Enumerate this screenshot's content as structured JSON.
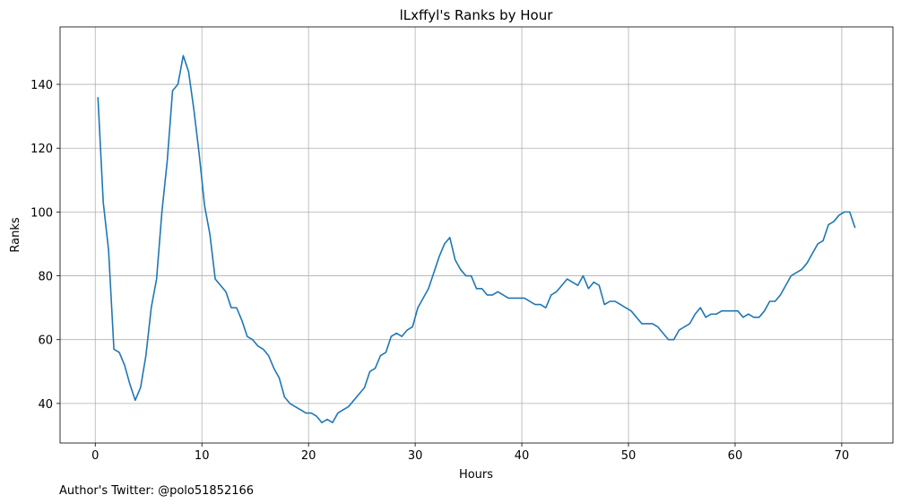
{
  "chart_data": {
    "type": "line",
    "title": "lLxffyl's Ranks by Hour",
    "xlabel": "Hours",
    "ylabel": "Ranks",
    "footnote": "Author's Twitter: @polo51852166",
    "x": [
      0.25,
      0.75,
      1.25,
      1.75,
      2.25,
      2.75,
      3.25,
      3.75,
      4.25,
      4.75,
      5.25,
      5.75,
      6.25,
      6.75,
      7.25,
      7.75,
      8.25,
      8.75,
      9.25,
      9.75,
      10.25,
      10.75,
      11.25,
      11.75,
      12.25,
      12.75,
      13.25,
      13.75,
      14.25,
      14.75,
      15.25,
      15.75,
      16.25,
      16.75,
      17.25,
      17.75,
      18.25,
      18.75,
      19.25,
      19.75,
      20.25,
      20.75,
      21.25,
      21.75,
      22.25,
      22.75,
      23.25,
      23.75,
      24.25,
      24.75,
      25.25,
      25.75,
      26.25,
      26.75,
      27.25,
      27.75,
      28.25,
      28.75,
      29.25,
      29.75,
      30.25,
      30.75,
      31.25,
      31.75,
      32.25,
      32.75,
      33.25,
      33.75,
      34.25,
      34.75,
      35.25,
      35.75,
      36.25,
      36.75,
      37.25,
      37.75,
      38.25,
      38.75,
      39.25,
      39.75,
      40.25,
      40.75,
      41.25,
      41.75,
      42.25,
      42.75,
      43.25,
      43.75,
      44.25,
      44.75,
      45.25,
      45.75,
      46.25,
      46.75,
      47.25,
      47.75,
      48.25,
      48.75,
      49.25,
      49.75,
      50.25,
      50.75,
      51.25,
      51.75,
      52.25,
      52.75,
      53.25,
      53.75,
      54.25,
      54.75,
      55.25,
      55.75,
      56.25,
      56.75,
      57.25,
      57.75,
      58.25,
      58.75,
      59.25,
      59.75,
      60.25,
      60.75,
      61.25,
      61.75,
      62.25,
      62.75,
      63.25,
      63.75,
      64.25,
      64.75,
      65.25,
      65.75,
      66.25,
      66.75,
      67.25,
      67.75,
      68.25,
      68.75,
      69.25,
      69.75,
      70.25,
      70.75,
      71.25
    ],
    "series": [
      {
        "name": "Ranks",
        "color": "#1f77b4",
        "values": [
          136,
          103,
          88,
          57,
          56,
          52,
          46,
          41,
          45,
          55,
          70,
          79,
          100,
          116,
          138,
          140,
          149,
          144,
          132,
          118,
          102,
          93,
          79,
          77,
          75,
          70,
          70,
          66,
          61,
          60,
          58,
          57,
          55,
          51,
          48,
          42,
          40,
          39,
          38,
          37,
          37,
          36,
          34,
          35,
          34,
          37,
          38,
          39,
          41,
          43,
          45,
          50,
          51,
          55,
          56,
          61,
          62,
          61,
          63,
          64,
          70,
          73,
          76,
          81,
          86,
          90,
          92,
          85,
          82,
          80,
          80,
          76,
          76,
          74,
          74,
          75,
          74,
          73,
          73,
          73,
          73,
          72,
          71,
          71,
          70,
          74,
          75,
          77,
          79,
          78,
          77,
          80,
          76,
          78,
          77,
          71,
          72,
          72,
          71,
          70,
          69,
          67,
          65,
          65,
          65,
          64,
          62,
          60,
          60,
          63,
          64,
          65,
          68,
          70,
          67,
          68,
          68,
          69,
          69,
          69,
          69,
          67,
          68,
          67,
          67,
          69,
          72,
          72,
          74,
          77,
          80,
          81,
          82,
          84,
          87,
          90,
          91,
          96,
          97,
          99,
          100,
          100,
          95
        ]
      }
    ],
    "xlim": [
      -3.3,
      74.8
    ],
    "ylim": [
      27.6,
      158
    ],
    "xticks": [
      0,
      10,
      20,
      30,
      40,
      50,
      60,
      70
    ],
    "yticks": [
      40,
      60,
      80,
      100,
      120,
      140
    ],
    "grid": true
  }
}
